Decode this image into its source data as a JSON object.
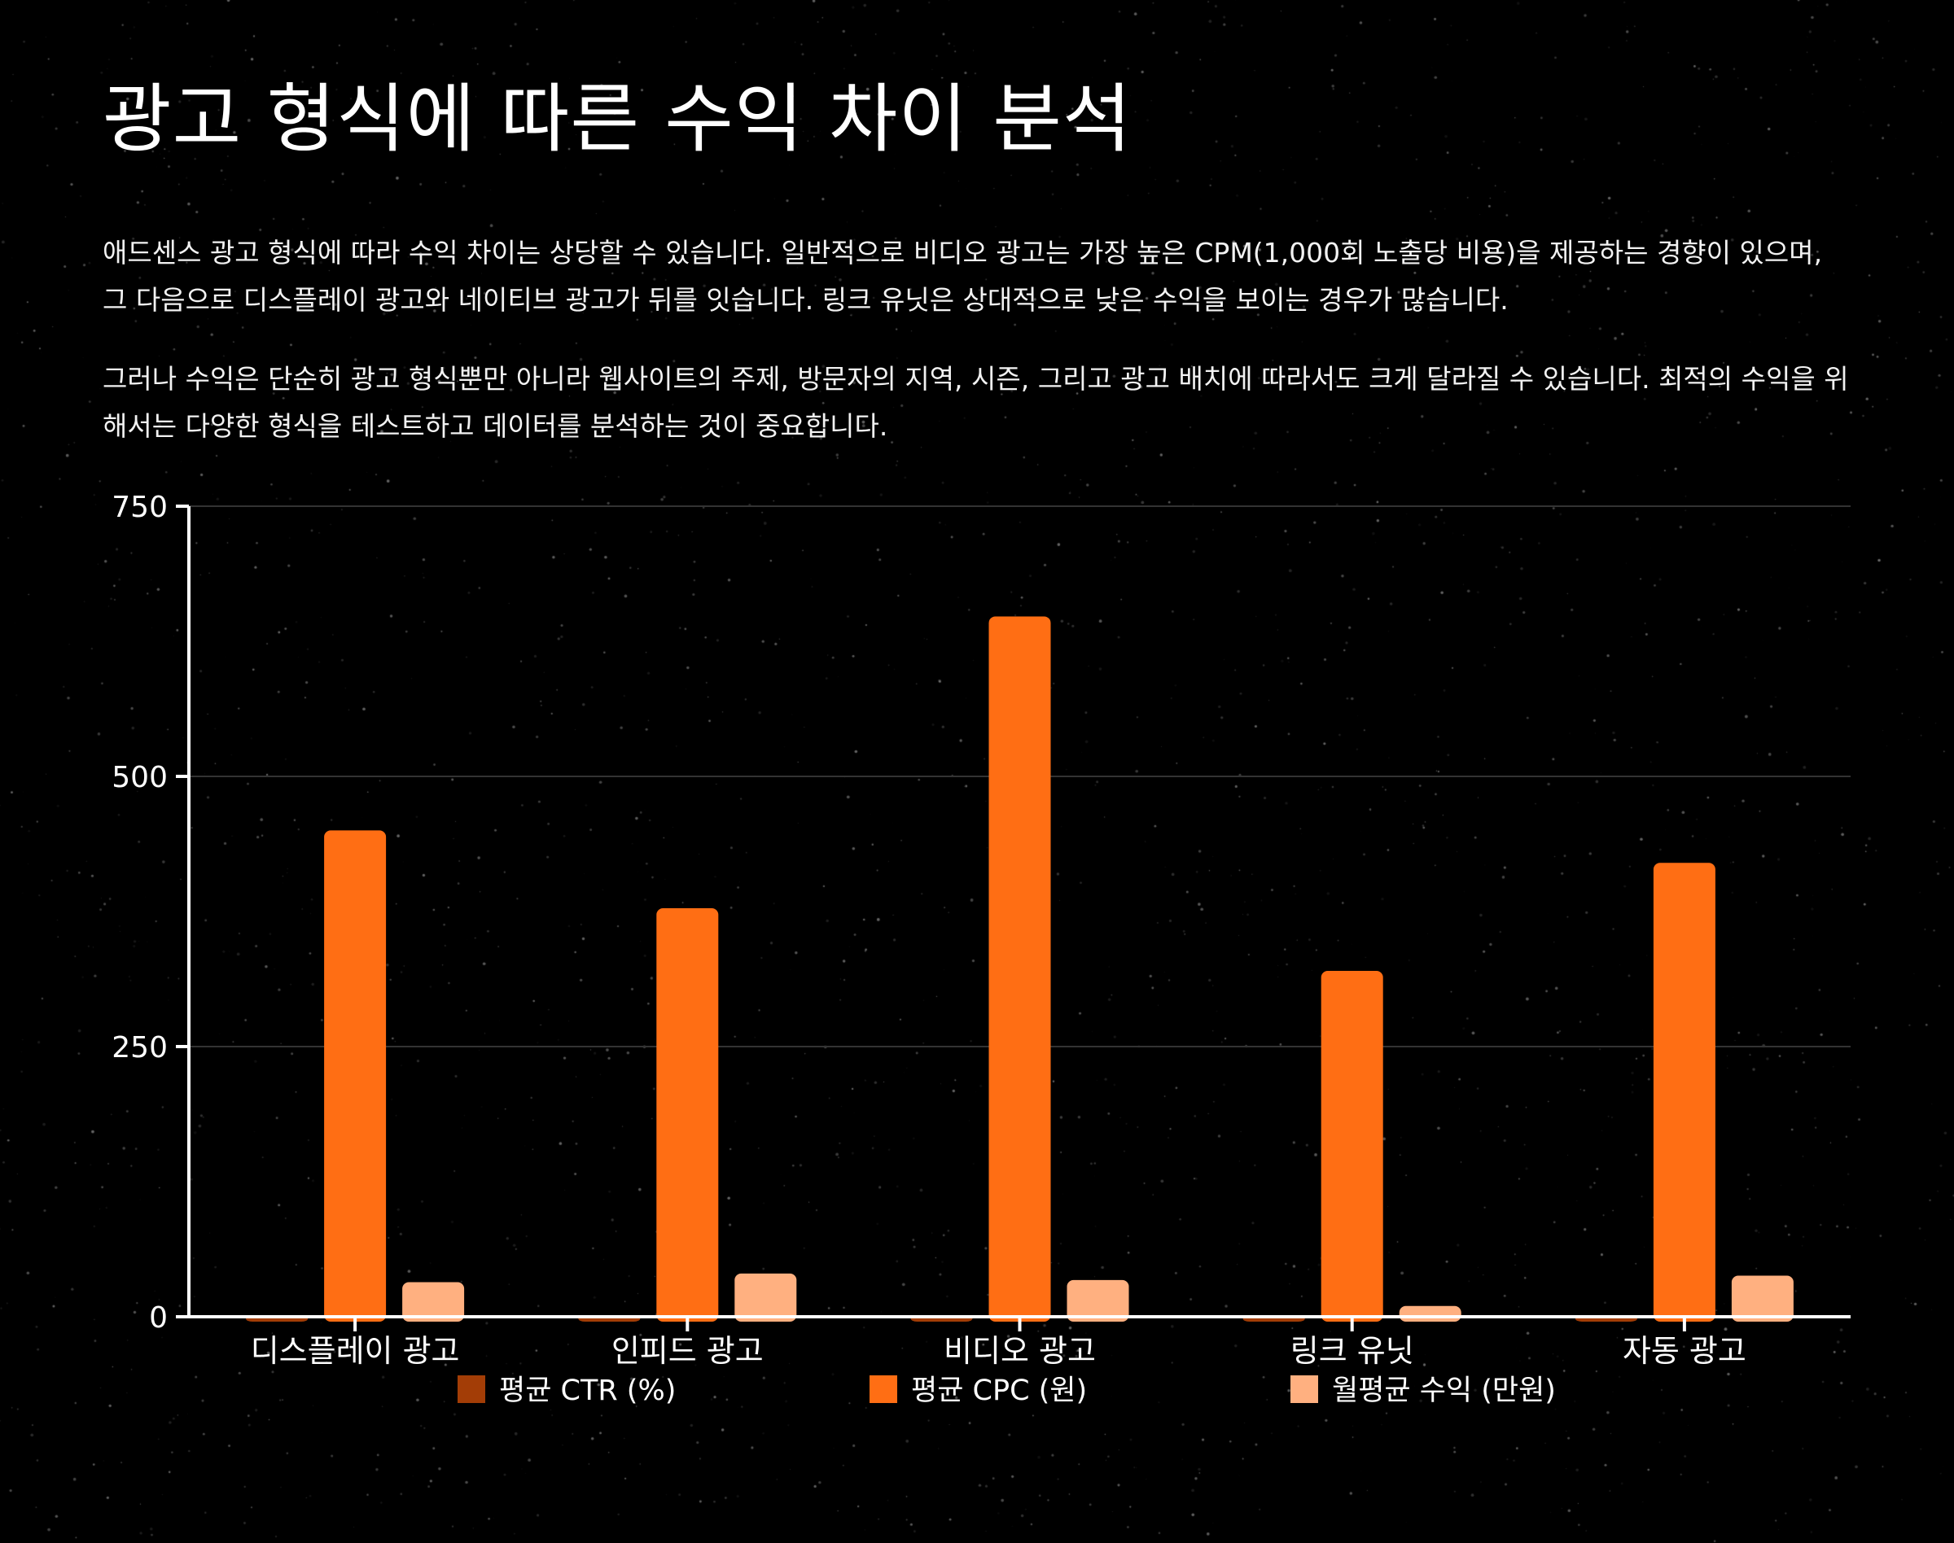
{
  "page": {
    "title": "광고 형식에 따른 수익 차이 분석",
    "paragraphs": [
      "애드센스 광고 형식에 따라 수익 차이는 상당할 수 있습니다. 일반적으로 비디오 광고는 가장 높은 CPM(1,000회 노출당 비용)을 제공하는 경향이 있으며, 그 다음으로 디스플레이 광고와 네이티브 광고가 뒤를 잇습니다. 링크 유닛은 상대적으로 낮은 수익을 보이는 경우가 많습니다.",
      "그러나 수익은 단순히 광고 형식뿐만 아니라 웹사이트의 주제, 방문자의 지역, 시즌, 그리고 광고 배치에 따라서도 크게 달라질 수 있습니다. 최적의 수익을 위해서는 다양한 형식을 테스트하고 데이터를 분석하는 것이 중요합니다."
    ]
  },
  "chart_data": {
    "type": "bar",
    "categories": [
      "디스플레이 광고",
      "인피드 광고",
      "비디오 광고",
      "링크 유닛",
      "자동 광고"
    ],
    "series": [
      {
        "name": "평균 CTR (%)",
        "color": "#a33d06",
        "values": [
          0.8,
          1.2,
          1.5,
          0.5,
          1.0
        ]
      },
      {
        "name": "평균 CPC (원)",
        "color": "#ff6e14",
        "values": [
          450,
          378,
          648,
          320,
          420
        ]
      },
      {
        "name": "월평균 수익 (만원)",
        "color": "#ffb080",
        "values": [
          32,
          40,
          34,
          10,
          38
        ]
      }
    ],
    "yticks": [
      "0",
      "250",
      "500",
      "750"
    ],
    "ylim": [
      0,
      750
    ],
    "grid": true,
    "legend_position": "bottom"
  },
  "colors": {
    "background": "#000000",
    "text": "#ffffff",
    "axis": "#ffffff",
    "grid": "#333333"
  }
}
